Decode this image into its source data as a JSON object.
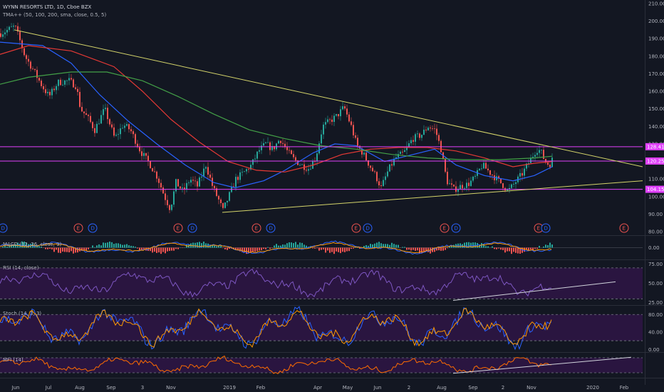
{
  "header": {
    "symbol_line": "WYNN RESORTS LTD, 1D, Cboe BZX",
    "indicator_line": "TMA++ (50, 100, 200, sma, close, 0.5, 5)"
  },
  "indicators": {
    "macd_label": "MACD (12, 26, close, 9)",
    "rsi_label": "RSI (14, close)",
    "stoch_label": "Stoch (14, 3, 3)",
    "mfi_label": "MFI (14)"
  },
  "colors": {
    "background": "#131722",
    "candle_up": "#26a69a",
    "candle_down": "#ef5350",
    "sma50": "#2962ff",
    "sma100": "#e53935",
    "sma200": "#43a047",
    "trendline": "#d4d46a",
    "horizontal_level": "#e040fb",
    "oscillator_fill": "#2a1540"
  },
  "chart_data": [
    {
      "type": "candlestick",
      "title": "WYNN RESORTS LTD, 1D, Cboe BZX",
      "price_axis_ticks": [
        80,
        90,
        100,
        110,
        120,
        130,
        140,
        150,
        160,
        170,
        180,
        190,
        200,
        210
      ],
      "ylim": [
        78,
        212
      ],
      "x_tick_labels": [
        "Jun",
        "Jul",
        "Aug",
        "Sep",
        "3",
        "Nov",
        "2019",
        "Feb",
        "Apr",
        "May",
        "Jun",
        "2",
        "Aug",
        "Sep",
        "2",
        "Nov",
        "2020",
        "Feb"
      ],
      "close_path": [
        {
          "x": 0,
          "y": 193
        },
        {
          "x": 20,
          "y": 197
        },
        {
          "x": 26,
          "y": 190
        },
        {
          "x": 34,
          "y": 180
        },
        {
          "x": 46,
          "y": 172
        },
        {
          "x": 58,
          "y": 163
        },
        {
          "x": 68,
          "y": 157
        },
        {
          "x": 80,
          "y": 165
        },
        {
          "x": 96,
          "y": 166
        },
        {
          "x": 106,
          "y": 163
        },
        {
          "x": 112,
          "y": 150
        },
        {
          "x": 122,
          "y": 145
        },
        {
          "x": 132,
          "y": 138
        },
        {
          "x": 146,
          "y": 150
        },
        {
          "x": 160,
          "y": 133
        },
        {
          "x": 172,
          "y": 141
        },
        {
          "x": 182,
          "y": 138
        },
        {
          "x": 196,
          "y": 126
        },
        {
          "x": 210,
          "y": 118
        },
        {
          "x": 220,
          "y": 111
        },
        {
          "x": 230,
          "y": 100
        },
        {
          "x": 238,
          "y": 93
        },
        {
          "x": 246,
          "y": 108
        },
        {
          "x": 256,
          "y": 103
        },
        {
          "x": 266,
          "y": 110
        },
        {
          "x": 276,
          "y": 106
        },
        {
          "x": 288,
          "y": 118
        },
        {
          "x": 298,
          "y": 105
        },
        {
          "x": 306,
          "y": 98
        },
        {
          "x": 312,
          "y": 92
        },
        {
          "x": 320,
          "y": 100
        },
        {
          "x": 330,
          "y": 110
        },
        {
          "x": 342,
          "y": 114
        },
        {
          "x": 352,
          "y": 118
        },
        {
          "x": 362,
          "y": 126
        },
        {
          "x": 372,
          "y": 130
        },
        {
          "x": 382,
          "y": 127
        },
        {
          "x": 392,
          "y": 133
        },
        {
          "x": 402,
          "y": 126
        },
        {
          "x": 412,
          "y": 121
        },
        {
          "x": 422,
          "y": 118
        },
        {
          "x": 432,
          "y": 116
        },
        {
          "x": 442,
          "y": 122
        },
        {
          "x": 452,
          "y": 140
        },
        {
          "x": 462,
          "y": 143
        },
        {
          "x": 472,
          "y": 146
        },
        {
          "x": 482,
          "y": 151
        },
        {
          "x": 492,
          "y": 140
        },
        {
          "x": 500,
          "y": 129
        },
        {
          "x": 508,
          "y": 125
        },
        {
          "x": 516,
          "y": 119
        },
        {
          "x": 526,
          "y": 112
        },
        {
          "x": 534,
          "y": 105
        },
        {
          "x": 544,
          "y": 115
        },
        {
          "x": 554,
          "y": 122
        },
        {
          "x": 566,
          "y": 125
        },
        {
          "x": 578,
          "y": 133
        },
        {
          "x": 590,
          "y": 135
        },
        {
          "x": 600,
          "y": 140
        },
        {
          "x": 610,
          "y": 138
        },
        {
          "x": 618,
          "y": 127
        },
        {
          "x": 626,
          "y": 109
        },
        {
          "x": 636,
          "y": 104
        },
        {
          "x": 646,
          "y": 106
        },
        {
          "x": 656,
          "y": 107
        },
        {
          "x": 666,
          "y": 111
        },
        {
          "x": 676,
          "y": 118
        },
        {
          "x": 686,
          "y": 114
        },
        {
          "x": 696,
          "y": 110
        },
        {
          "x": 704,
          "y": 107
        },
        {
          "x": 712,
          "y": 103
        },
        {
          "x": 722,
          "y": 108
        },
        {
          "x": 732,
          "y": 113
        },
        {
          "x": 742,
          "y": 120
        },
        {
          "x": 752,
          "y": 127
        },
        {
          "x": 758,
          "y": 126
        },
        {
          "x": 764,
          "y": 120
        },
        {
          "x": 770,
          "y": 118
        },
        {
          "x": 774,
          "y": 121
        }
      ],
      "series": [
        {
          "name": "SMA 50",
          "values": [
            {
              "x": 0,
              "y": 188
            },
            {
              "x": 60,
              "y": 186
            },
            {
              "x": 100,
              "y": 176
            },
            {
              "x": 140,
              "y": 158
            },
            {
              "x": 180,
              "y": 143
            },
            {
              "x": 220,
              "y": 130
            },
            {
              "x": 260,
              "y": 118
            },
            {
              "x": 300,
              "y": 108
            },
            {
              "x": 330,
              "y": 105
            },
            {
              "x": 370,
              "y": 109
            },
            {
              "x": 400,
              "y": 115
            },
            {
              "x": 440,
              "y": 125
            },
            {
              "x": 470,
              "y": 130
            },
            {
              "x": 500,
              "y": 129
            },
            {
              "x": 540,
              "y": 120
            },
            {
              "x": 580,
              "y": 124
            },
            {
              "x": 610,
              "y": 127
            },
            {
              "x": 640,
              "y": 118
            },
            {
              "x": 680,
              "y": 112
            },
            {
              "x": 720,
              "y": 109
            },
            {
              "x": 750,
              "y": 112
            },
            {
              "x": 775,
              "y": 117
            }
          ]
        },
        {
          "name": "SMA 100",
          "values": [
            {
              "x": 0,
              "y": 181
            },
            {
              "x": 40,
              "y": 186
            },
            {
              "x": 100,
              "y": 183
            },
            {
              "x": 160,
              "y": 174
            },
            {
              "x": 200,
              "y": 160
            },
            {
              "x": 240,
              "y": 144
            },
            {
              "x": 280,
              "y": 131
            },
            {
              "x": 320,
              "y": 120
            },
            {
              "x": 360,
              "y": 115
            },
            {
              "x": 400,
              "y": 114
            },
            {
              "x": 440,
              "y": 118
            },
            {
              "x": 480,
              "y": 124
            },
            {
              "x": 520,
              "y": 127
            },
            {
              "x": 560,
              "y": 128
            },
            {
              "x": 600,
              "y": 128
            },
            {
              "x": 640,
              "y": 126
            },
            {
              "x": 680,
              "y": 122
            },
            {
              "x": 720,
              "y": 117
            },
            {
              "x": 750,
              "y": 119
            },
            {
              "x": 775,
              "y": 120
            }
          ]
        },
        {
          "name": "SMA 200",
          "values": [
            {
              "x": 0,
              "y": 164
            },
            {
              "x": 40,
              "y": 168
            },
            {
              "x": 100,
              "y": 171
            },
            {
              "x": 150,
              "y": 171
            },
            {
              "x": 200,
              "y": 166
            },
            {
              "x": 250,
              "y": 157
            },
            {
              "x": 300,
              "y": 147
            },
            {
              "x": 350,
              "y": 138
            },
            {
              "x": 400,
              "y": 133
            },
            {
              "x": 450,
              "y": 129
            },
            {
              "x": 500,
              "y": 127
            },
            {
              "x": 550,
              "y": 124
            },
            {
              "x": 600,
              "y": 122
            },
            {
              "x": 650,
              "y": 121
            },
            {
              "x": 700,
              "y": 121
            },
            {
              "x": 750,
              "y": 122
            },
            {
              "x": 775,
              "y": 123
            }
          ]
        }
      ],
      "trendlines": [
        {
          "name": "descending resistance",
          "from": {
            "x": 20,
            "y": 195
          },
          "to": {
            "x": 902,
            "y": 117
          }
        },
        {
          "name": "ascending support",
          "from": {
            "x": 312,
            "y": 91
          },
          "to": {
            "x": 902,
            "y": 109
          }
        }
      ],
      "horizontal_levels": [
        {
          "value": 128.41,
          "label": "128.41"
        },
        {
          "value": 120.25,
          "label": "120.25"
        },
        {
          "value": 104.15,
          "label": "104.15"
        }
      ],
      "event_markers": [
        {
          "x": 4,
          "label": "D"
        },
        {
          "x": 110,
          "label": "E"
        },
        {
          "x": 130,
          "label": "D"
        },
        {
          "x": 250,
          "label": "E"
        },
        {
          "x": 270,
          "label": "D"
        },
        {
          "x": 360,
          "label": "E"
        },
        {
          "x": 380,
          "label": "D"
        },
        {
          "x": 500,
          "label": "E"
        },
        {
          "x": 516,
          "label": "D"
        },
        {
          "x": 624,
          "label": "E"
        },
        {
          "x": 640,
          "label": "D"
        },
        {
          "x": 756,
          "label": "E"
        },
        {
          "x": 766,
          "label": "D"
        },
        {
          "x": 876,
          "label": "E"
        }
      ]
    },
    {
      "type": "line",
      "title": "MACD (12, 26, close, 9)",
      "axis_ticks": [
        0.0
      ],
      "ylim": [
        -6,
        6
      ]
    },
    {
      "type": "line",
      "title": "RSI (14, close)",
      "axis_ticks": [
        25.0,
        50.0,
        75.0
      ],
      "ylim": [
        22,
        80
      ],
      "bands": [
        70,
        30
      ],
      "trendline": {
        "from": {
          "x": 636,
          "y": 28
        },
        "to": {
          "x": 864,
          "y": 52
        }
      }
    },
    {
      "type": "line",
      "title": "Stoch (14, 3, 3)",
      "axis_ticks": [
        0.0,
        40.0,
        80.0
      ],
      "ylim": [
        -6,
        100
      ],
      "bands": [
        80,
        20
      ]
    },
    {
      "type": "line",
      "title": "MFI (14)",
      "axis_ticks": [],
      "ylim": [
        0,
        100
      ],
      "bands": [
        80,
        20
      ],
      "trendline": {
        "from": {
          "x": 636,
          "y": 18
        },
        "to": {
          "x": 886,
          "y": 82
        }
      }
    }
  ]
}
